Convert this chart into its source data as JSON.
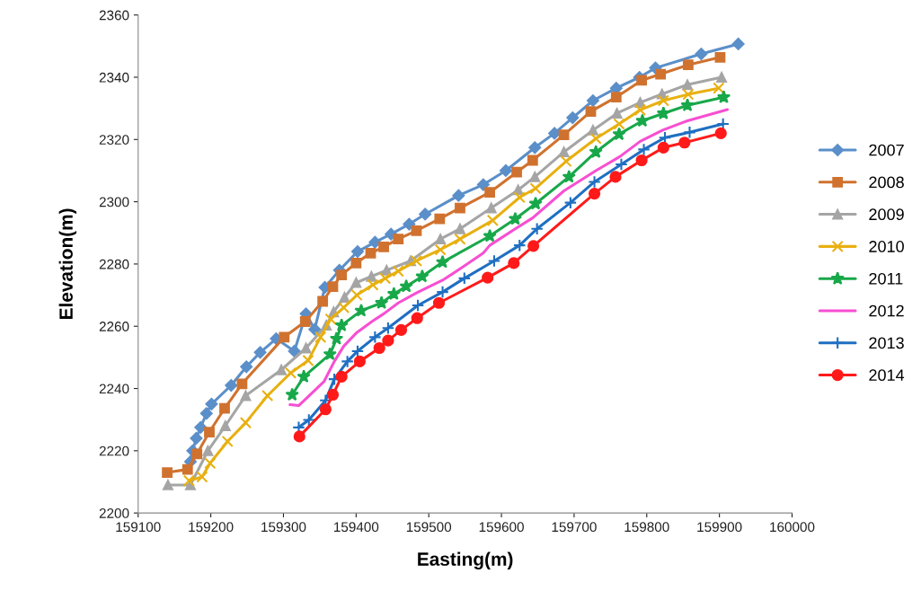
{
  "chart_data": {
    "type": "line",
    "xlabel": "Easting(m)",
    "ylabel": "Elevation(m)",
    "xlim": [
      159100,
      160000
    ],
    "xticks": [
      159100,
      159200,
      159300,
      159400,
      159500,
      159600,
      159700,
      159800,
      159900,
      160000
    ],
    "ylim": [
      2200,
      2360
    ],
    "yticks": [
      2200,
      2220,
      2240,
      2260,
      2280,
      2300,
      2320,
      2340,
      2360
    ],
    "grid": false,
    "legend": "right",
    "line_style": "solid",
    "series": [
      {
        "name": "2007",
        "color": "#5b8fc9",
        "marker": "diamond",
        "x": [
          159172,
          159175,
          159180,
          159186,
          159194,
          159201,
          159228,
          159249,
          159268,
          159290,
          159315,
          159331,
          159343,
          159357,
          159377,
          159402,
          159426,
          159448,
          159473,
          159495,
          159541,
          159575,
          159606,
          159646,
          159673,
          159698,
          159726,
          159758,
          159790,
          159812,
          159875,
          159926
        ],
        "values": [
          2216.5,
          2220,
          2224,
          2227.5,
          2232,
          2235,
          2241,
          2247,
          2251.6,
          2256,
          2252,
          2264,
          2259,
          2272.5,
          2278,
          2284,
          2287,
          2289.6,
          2292.8,
          2296,
          2302,
          2305.5,
          2310,
          2317.4,
          2322,
          2327,
          2332.5,
          2336.5,
          2340,
          2343,
          2347.5,
          2350.7
        ]
      },
      {
        "name": "2008",
        "color": "#d0722f",
        "marker": "square",
        "x": [
          159140,
          159168,
          159181,
          159198,
          159219,
          159243,
          159301,
          159330,
          159354,
          159368,
          159380,
          159400,
          159420,
          159438,
          159458,
          159483,
          159515,
          159543,
          159584,
          159621,
          159643,
          159686,
          159723,
          159758,
          159793,
          159819,
          159857,
          159901
        ],
        "values": [
          2213,
          2214,
          2219,
          2226,
          2233.6,
          2241.5,
          2256.5,
          2261.5,
          2268,
          2272.7,
          2276.5,
          2280.3,
          2283.5,
          2285.5,
          2288,
          2290.7,
          2294.5,
          2298,
          2303,
          2309.5,
          2313.3,
          2321.5,
          2329,
          2333.6,
          2339,
          2341,
          2344,
          2346.4
        ]
      },
      {
        "name": "2009",
        "color": "#a5a5a5",
        "marker": "triangle",
        "x": [
          159141,
          159172,
          159196,
          159220,
          159248,
          159297,
          159331,
          159359,
          159369,
          159384,
          159400,
          159421,
          159442,
          159475,
          159516,
          159543,
          159586,
          159623,
          159646,
          159686,
          159726,
          159759,
          159791,
          159821,
          159856,
          159903
        ],
        "values": [
          2209,
          2209,
          2220,
          2228,
          2237.7,
          2246,
          2253,
          2260.3,
          2264.6,
          2269.3,
          2274,
          2276,
          2278,
          2281,
          2288,
          2291.3,
          2298,
          2303.8,
          2308,
          2316,
          2323,
          2328.4,
          2331.9,
          2334.6,
          2337.6,
          2340
        ]
      },
      {
        "name": "2010",
        "color": "#e8b010",
        "marker": "x",
        "x": [
          159170,
          159188,
          159199,
          159223,
          159248,
          159278,
          159310,
          159334,
          159351,
          159365,
          159383,
          159401,
          159423,
          159440,
          159458,
          159483,
          159516,
          159543,
          159588,
          159625,
          159647,
          159689,
          159730,
          159762,
          159791,
          159823,
          159857,
          159899
        ],
        "values": [
          2210.4,
          2211.6,
          2216,
          2223,
          2229,
          2237.7,
          2245,
          2249,
          2256.5,
          2262.3,
          2266,
          2270,
          2273.3,
          2275.4,
          2277.7,
          2281,
          2284.6,
          2288,
          2294,
          2301.4,
          2304.3,
          2313,
          2320.3,
          2325,
          2329.5,
          2332.5,
          2334.5,
          2336.5
        ]
      },
      {
        "name": "2011",
        "color": "#18a84a",
        "marker": "star",
        "x": [
          159312,
          159328,
          159364,
          159373,
          159380,
          159407,
          159435,
          159452,
          159469,
          159491,
          159519,
          159584,
          159619,
          159647,
          159693,
          159730,
          159762,
          159794,
          159823,
          159856,
          159906
        ],
        "values": [
          2238,
          2243.8,
          2251,
          2256,
          2260.3,
          2265,
          2267.5,
          2270.4,
          2272.8,
          2276,
          2280.6,
          2289,
          2294.5,
          2299.4,
          2308,
          2316,
          2321.7,
          2326,
          2328.4,
          2331,
          2333.6
        ]
      },
      {
        "name": "2012",
        "color": "#f74fd2",
        "marker": "none",
        "x": [
          159309,
          159321,
          159356,
          159370,
          159383,
          159401,
          159423,
          159438,
          159458,
          159483,
          159519,
          159544,
          159575,
          159584,
          159621,
          159643,
          159686,
          159730,
          159763,
          159791,
          159822,
          159856,
          159911
        ],
        "values": [
          2234.8,
          2234.5,
          2242.3,
          2248.7,
          2253.6,
          2258,
          2261.7,
          2264,
          2267.5,
          2270.7,
          2274.8,
          2278.6,
          2283.5,
          2286,
          2291.6,
          2294.8,
          2303.5,
          2310,
          2314.5,
          2319.4,
          2323,
          2326,
          2329.6
        ]
      },
      {
        "name": "2013",
        "color": "#1f6fc2",
        "marker": "cross",
        "x": [
          159321,
          159335,
          159358,
          159370,
          159388,
          159402,
          159426,
          159444,
          159485,
          159519,
          159549,
          159590,
          159625,
          159649,
          159695,
          159728,
          159765,
          159796,
          159825,
          159859,
          159905
        ],
        "values": [
          2227.5,
          2229.9,
          2236.2,
          2243,
          2248.7,
          2252,
          2256.5,
          2259.4,
          2266.7,
          2271,
          2275.4,
          2281,
          2286,
          2291.3,
          2299.7,
          2306.4,
          2312,
          2316.8,
          2320.6,
          2322.3,
          2325
        ]
      },
      {
        "name": "2014",
        "color": "#ff1a1a",
        "marker": "circle",
        "x": [
          159322,
          159358,
          159368,
          159380,
          159405,
          159432,
          159444,
          159462,
          159484,
          159514,
          159581,
          159617,
          159644,
          159728,
          159757,
          159793,
          159823,
          159852,
          159902
        ],
        "values": [
          2224.6,
          2233.3,
          2238,
          2243.8,
          2248.7,
          2253,
          2255.4,
          2258.8,
          2262.6,
          2267.5,
          2275.6,
          2280.3,
          2285.8,
          2302.6,
          2308,
          2313.3,
          2317.4,
          2319,
          2322
        ]
      }
    ]
  }
}
